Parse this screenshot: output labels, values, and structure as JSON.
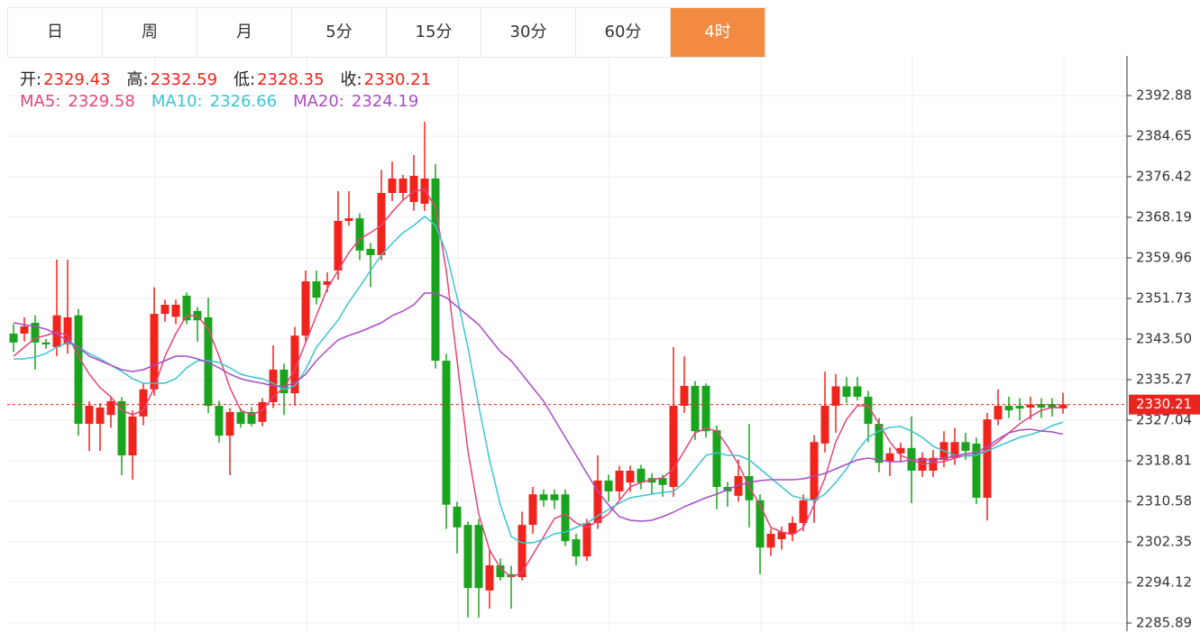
{
  "chart_data": {
    "type": "candlestick",
    "tabs": [
      "日",
      "周",
      "月",
      "5分",
      "15分",
      "30分",
      "60分",
      "4时"
    ],
    "active_tab": 7,
    "ohlc_labels": [
      "开:",
      "高:",
      "低:",
      "收:"
    ],
    "up_color": "#f0241c",
    "down_color": "#1aa41e",
    "candles": [
      [
        2344.6,
        2346.5,
        2340.9,
        2342.8
      ],
      [
        2344.6,
        2347.9,
        2343.0,
        2346.1
      ],
      [
        2346.8,
        2348.3,
        2337.3,
        2342.8
      ],
      [
        2342.8,
        2343.5,
        2341.5,
        2342.4
      ],
      [
        2341.85,
        2359.6,
        2340.0,
        2348.3
      ],
      [
        2342.4,
        2359.6,
        2340.5,
        2347.9
      ],
      [
        2348.3,
        2349.6,
        2323.9,
        2326.3
      ],
      [
        2326.3,
        2330.9,
        2320.8,
        2329.96
      ],
      [
        2326.3,
        2330.5,
        2320.8,
        2329.6
      ],
      [
        2328.1,
        2331.7,
        2325.5,
        2330.9
      ],
      [
        2330.9,
        2331.7,
        2315.9,
        2319.9
      ],
      [
        2319.9,
        2329.0,
        2315.0,
        2327.8
      ],
      [
        2327.8,
        2334.5,
        2326.0,
        2333.3
      ],
      [
        2333.3,
        2354.0,
        2332.0,
        2348.6
      ],
      [
        2348.6,
        2351.5,
        2347.0,
        2350.45
      ],
      [
        2348.0,
        2351.5,
        2346.5,
        2350.45
      ],
      [
        2352.3,
        2353.0,
        2346.5,
        2347.3
      ],
      [
        2349.2,
        2350.0,
        2343.0,
        2347.3
      ],
      [
        2347.9,
        2351.9,
        2328.5,
        2329.96
      ],
      [
        2329.96,
        2331.0,
        2322.5,
        2323.9
      ],
      [
        2323.9,
        2329.5,
        2315.9,
        2328.7
      ],
      [
        2328.7,
        2329.5,
        2325.5,
        2326.3
      ],
      [
        2328.7,
        2329.7,
        2325.8,
        2326.3
      ],
      [
        2326.7,
        2331.5,
        2325.8,
        2330.7
      ],
      [
        2330.7,
        2342.2,
        2329.5,
        2337.3
      ],
      [
        2337.3,
        2338.5,
        2328.1,
        2332.5
      ],
      [
        2332.5,
        2346.0,
        2330.0,
        2344.2
      ],
      [
        2344.2,
        2357.4,
        2343.0,
        2355.2
      ],
      [
        2355.2,
        2357.4,
        2350.5,
        2351.9
      ],
      [
        2354.5,
        2357.0,
        2353.0,
        2355.2
      ],
      [
        2357.4,
        2373.5,
        2355.5,
        2367.46
      ],
      [
        2367.46,
        2373.5,
        2366.5,
        2368.0
      ],
      [
        2368.0,
        2369.0,
        2359.5,
        2361.43
      ],
      [
        2361.79,
        2363.0,
        2354.0,
        2360.51
      ],
      [
        2360.51,
        2377.8,
        2359.5,
        2373.13
      ],
      [
        2373.13,
        2379.5,
        2371.5,
        2376.06
      ],
      [
        2373.13,
        2376.8,
        2371.8,
        2376.06
      ],
      [
        2371.3,
        2380.8,
        2369.5,
        2376.6
      ],
      [
        2370.94,
        2387.58,
        2369.5,
        2376.06
      ],
      [
        2376.06,
        2379.0,
        2337.5,
        2339.1
      ],
      [
        2339.1,
        2340.5,
        2305.0,
        2309.9
      ],
      [
        2309.5,
        2310.5,
        2300.0,
        2305.3
      ],
      [
        2305.8,
        2306.5,
        2287.0,
        2293.0
      ],
      [
        2305.8,
        2307.0,
        2287.0,
        2293.0
      ],
      [
        2292.5,
        2301.0,
        2288.8,
        2297.6
      ],
      [
        2297.6,
        2299.0,
        2294.5,
        2295.2
      ],
      [
        2295.8,
        2297.5,
        2288.8,
        2295.2
      ],
      [
        2295.2,
        2308.5,
        2294.5,
        2305.8
      ],
      [
        2305.8,
        2313.5,
        2304.0,
        2312.0
      ],
      [
        2312.0,
        2313.0,
        2309.5,
        2310.8
      ],
      [
        2312.0,
        2313.0,
        2309.0,
        2310.8
      ],
      [
        2312.0,
        2313.0,
        2301.5,
        2302.5
      ],
      [
        2302.9,
        2304.0,
        2297.6,
        2299.4
      ],
      [
        2299.4,
        2307.0,
        2298.5,
        2306.2
      ],
      [
        2306.2,
        2319.9,
        2305.0,
        2314.8
      ],
      [
        2314.8,
        2316.0,
        2310.5,
        2312.6
      ],
      [
        2312.6,
        2317.8,
        2311.0,
        2316.8
      ],
      [
        2314.4,
        2317.8,
        2312.5,
        2316.8
      ],
      [
        2317.2,
        2318.0,
        2313.0,
        2314.4
      ],
      [
        2315.3,
        2316.3,
        2312.0,
        2314.4
      ],
      [
        2315.3,
        2316.0,
        2311.5,
        2313.9
      ],
      [
        2313.5,
        2341.85,
        2311.5,
        2329.96
      ],
      [
        2329.96,
        2340.0,
        2328.5,
        2334.0
      ],
      [
        2334.0,
        2335.0,
        2323.0,
        2324.8
      ],
      [
        2334.0,
        2334.5,
        2323.5,
        2324.8
      ],
      [
        2325.0,
        2326.0,
        2309.0,
        2313.5
      ],
      [
        2313.5,
        2314.5,
        2309.5,
        2312.6
      ],
      [
        2311.7,
        2319.0,
        2310.5,
        2315.7
      ],
      [
        2315.7,
        2326.3,
        2305.3,
        2310.8
      ],
      [
        2310.8,
        2312.0,
        2295.8,
        2301.2
      ],
      [
        2301.2,
        2305.0,
        2299.5,
        2304.0
      ],
      [
        2302.9,
        2305.5,
        2300.8,
        2304.4
      ],
      [
        2304.0,
        2307.5,
        2302.5,
        2306.2
      ],
      [
        2306.2,
        2312.0,
        2304.5,
        2310.8
      ],
      [
        2310.8,
        2324.0,
        2306.2,
        2322.6
      ],
      [
        2322.3,
        2336.9,
        2320.5,
        2329.96
      ],
      [
        2329.96,
        2336.4,
        2324.5,
        2333.9
      ],
      [
        2333.9,
        2335.8,
        2330.5,
        2331.8
      ],
      [
        2333.9,
        2335.8,
        2331.0,
        2331.8
      ],
      [
        2331.8,
        2333.0,
        2322.6,
        2326.3
      ],
      [
        2326.3,
        2327.5,
        2316.5,
        2318.4
      ],
      [
        2318.6,
        2321.5,
        2315.7,
        2320.3
      ],
      [
        2320.3,
        2322.5,
        2318.5,
        2321.4
      ],
      [
        2321.4,
        2327.8,
        2310.2,
        2316.8
      ],
      [
        2316.8,
        2320.5,
        2315.5,
        2319.4
      ],
      [
        2316.8,
        2321.0,
        2315.5,
        2319.4
      ],
      [
        2319.0,
        2324.8,
        2317.5,
        2322.6
      ],
      [
        2319.4,
        2325.5,
        2318.0,
        2322.6
      ],
      [
        2322.6,
        2324.5,
        2319.0,
        2320.8
      ],
      [
        2322.3,
        2323.5,
        2310.0,
        2311.3
      ],
      [
        2311.3,
        2328.5,
        2306.7,
        2327.2
      ],
      [
        2327.2,
        2333.3,
        2326.0,
        2329.96
      ],
      [
        2329.96,
        2331.8,
        2327.5,
        2329.05
      ],
      [
        2329.96,
        2331.5,
        2327.0,
        2329.4
      ],
      [
        2329.6,
        2331.8,
        2327.2,
        2330.2
      ],
      [
        2330.3,
        2331.5,
        2327.5,
        2329.6
      ],
      [
        2330.3,
        2331.5,
        2327.8,
        2329.6
      ],
      [
        2329.43,
        2332.59,
        2328.35,
        2330.21
      ]
    ],
    "series": [
      {
        "name": "MA5:",
        "color": "#e5447c",
        "values": [
          2340.02,
          2341.85,
          2343.68,
          2344.23,
          2344.96,
          2344.23,
          2340.02,
          2336.37,
          2333.62,
          2331.79,
          2329.05,
          2328.14,
          2329.05,
          2333.62,
          2340.02,
          2344.6,
          2348.25,
          2348.25,
          2345.51,
          2340.02,
          2333.62,
          2329.05,
          2328.14,
          2329.05,
          2331.79,
          2333.62,
          2337.28,
          2342.77,
          2348.25,
          2353.74,
          2357.4,
          2361.06,
          2363.8,
          2365.08,
          2366.54,
          2369.29,
          2371.67,
          2373.5,
          2373.86,
          2370.2,
          2357.4,
          2339.11,
          2320.82,
          2308.02,
          2300.7,
          2297.04,
          2295.21,
          2296.13,
          2299.79,
          2303.44,
          2307.1,
          2308.02,
          2306.19,
          2305.27,
          2306.55,
          2308.02,
          2310.76,
          2313.5,
          2314.42,
          2314.97,
          2315.33,
          2317.16,
          2320.82,
          2324.48,
          2325.39,
          2324.84,
          2321.73,
          2318.08,
          2313.5,
          2309.85,
          2305.27,
          2304.36,
          2303.81,
          2305.27,
          2309.85,
          2315.33,
          2322.65,
          2327.22,
          2329.96,
          2329.96,
          2326.31,
          2322.65,
          2319.91,
          2318.99,
          2318.08,
          2318.44,
          2318.63,
          2319.36,
          2319.91,
          2319.91,
          2321.19,
          2322.65,
          2324.48,
          2326.31,
          2327.77,
          2329.05,
          2329.6,
          2329.58
        ]
      },
      {
        "name": "MA10:",
        "color": "#3cc4d2",
        "values": [
          2339.48,
          2339.48,
          2339.84,
          2340.57,
          2341.85,
          2342.77,
          2341.85,
          2340.57,
          2339.48,
          2338.2,
          2336.92,
          2335.45,
          2334.54,
          2334.54,
          2334.54,
          2335.45,
          2337.65,
          2339.11,
          2339.11,
          2338.74,
          2337.65,
          2336.37,
          2335.82,
          2335.45,
          2334.54,
          2333.26,
          2333.99,
          2337.28,
          2341.85,
          2344.6,
          2347.34,
          2351.0,
          2354.11,
          2357.4,
          2360.51,
          2362.89,
          2365.08,
          2366.54,
          2368.37,
          2366.54,
          2361.06,
          2351.91,
          2341.85,
          2329.96,
          2318.99,
          2309.85,
          2303.44,
          2302.16,
          2302.16,
          2302.9,
          2303.99,
          2304.36,
          2305.27,
          2306.19,
          2307.65,
          2308.93,
          2310.21,
          2311.31,
          2311.67,
          2312.04,
          2312.41,
          2312.59,
          2314.42,
          2317.16,
          2319.91,
          2320.45,
          2319.91,
          2319.91,
          2318.99,
          2317.16,
          2315.33,
          2313.5,
          2311.67,
          2311.13,
          2310.76,
          2312.04,
          2314.42,
          2317.16,
          2320.82,
          2323.56,
          2324.84,
          2325.58,
          2325.76,
          2324.84,
          2323.56,
          2321.73,
          2320.82,
          2319.91,
          2319.72,
          2319.91,
          2320.82,
          2321.73,
          2322.65,
          2323.56,
          2324.11,
          2324.84,
          2325.94,
          2326.66
        ]
      },
      {
        "name": "MA20:",
        "color": "#a94cc4",
        "values": [
          2346.79,
          2346.43,
          2346.06,
          2345.51,
          2344.6,
          2343.13,
          2341.85,
          2340.02,
          2339.11,
          2338.2,
          2337.28,
          2336.92,
          2337.28,
          2338.2,
          2339.11,
          2340.02,
          2340.02,
          2339.48,
          2338.74,
          2337.65,
          2336.37,
          2335.45,
          2334.9,
          2334.54,
          2333.99,
          2333.99,
          2334.54,
          2336.37,
          2339.11,
          2341.3,
          2343.32,
          2344.23,
          2344.96,
          2345.88,
          2346.79,
          2348.25,
          2349.17,
          2350.45,
          2352.83,
          2352.83,
          2351.91,
          2350.08,
          2348.25,
          2346.43,
          2343.68,
          2340.94,
          2339.11,
          2336.37,
          2333.62,
          2330.88,
          2327.22,
          2323.56,
          2319.91,
          2316.25,
          2312.59,
          2309.85,
          2307.47,
          2306.74,
          2306.55,
          2306.74,
          2307.47,
          2308.38,
          2309.48,
          2310.39,
          2311.31,
          2312.04,
          2312.96,
          2313.87,
          2314.42,
          2314.78,
          2314.97,
          2314.97,
          2314.97,
          2315.15,
          2315.7,
          2316.25,
          2317.16,
          2318.08,
          2318.99,
          2319.36,
          2318.99,
          2318.63,
          2318.63,
          2318.99,
          2318.99,
          2318.99,
          2319.36,
          2319.72,
          2320.27,
          2320.45,
          2321.73,
          2323.2,
          2324.48,
          2325.03,
          2325.21,
          2324.84,
          2324.66,
          2324.19
        ]
      }
    ],
    "ylim": [
      2284.24,
      2400.93
    ],
    "yticks": [
      2392.88,
      2384.65,
      2376.42,
      2368.19,
      2359.96,
      2351.73,
      {
        "value": 2343.5,
        "label": "2343.50"
      },
      2335.27,
      2327.04,
      2318.81,
      2310.58,
      2302.35,
      2294.12,
      2285.89
    ],
    "grid": true
  }
}
